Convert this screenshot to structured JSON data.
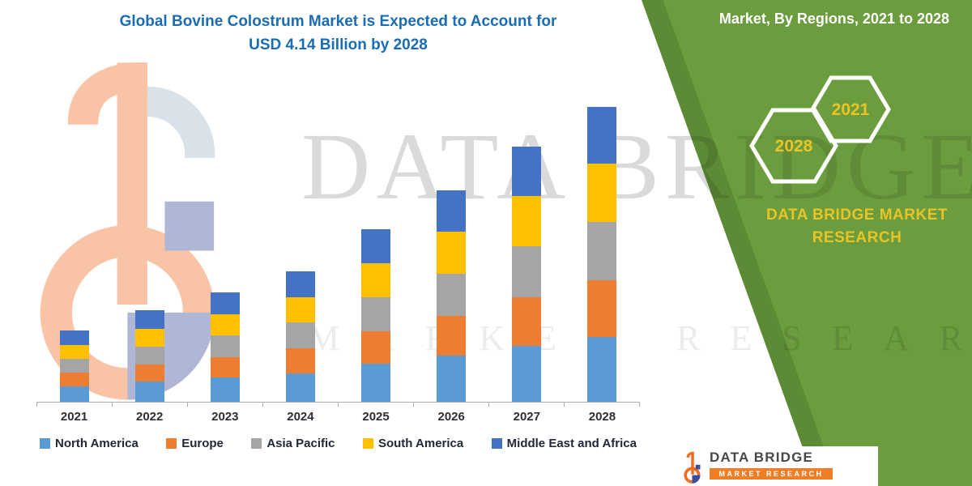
{
  "title": {
    "line1": "Global Bovine Colostrum Market is Expected to Account for",
    "line2": "USD 4.14 Billion by 2028"
  },
  "side_panel": {
    "heading": "Market, By Regions, 2021 to 2028",
    "hex_year_back": "2028",
    "hex_year_front": "2021",
    "brand": "DATA BRIDGE MARKET RESEARCH"
  },
  "watermark": {
    "big": "DATA BRIDGE",
    "small": "MARKET RESEARCH"
  },
  "footer": {
    "brand": "DATA BRIDGE",
    "sub": "MARKET RESEARCH"
  },
  "chart_data": {
    "type": "bar",
    "stacked": true,
    "title": "Global Bovine Colostrum Market is Expected to Account for USD 4.14 Billion by 2028",
    "unit": "USD Billion",
    "categories": [
      "2021",
      "2022",
      "2023",
      "2024",
      "2025",
      "2026",
      "2027",
      "2028"
    ],
    "series": [
      {
        "name": "North America",
        "color": "#5B9BD5",
        "values": [
          0.22,
          0.28,
          0.34,
          0.4,
          0.53,
          0.65,
          0.79,
          0.91
        ]
      },
      {
        "name": "Europe",
        "color": "#ED7D31",
        "values": [
          0.19,
          0.24,
          0.29,
          0.35,
          0.46,
          0.56,
          0.68,
          0.79
        ]
      },
      {
        "name": "Asia Pacific",
        "color": "#A5A5A5",
        "values": [
          0.19,
          0.25,
          0.3,
          0.36,
          0.48,
          0.59,
          0.71,
          0.82
        ]
      },
      {
        "name": "South America",
        "color": "#FFC000",
        "values": [
          0.2,
          0.25,
          0.3,
          0.36,
          0.48,
          0.59,
          0.71,
          0.82
        ]
      },
      {
        "name": "Middle East and Africa",
        "color": "#4472C4",
        "values": [
          0.2,
          0.26,
          0.31,
          0.36,
          0.47,
          0.58,
          0.69,
          0.8
        ]
      }
    ],
    "totals": [
      1.0,
      1.28,
      1.54,
      1.83,
      2.42,
      2.97,
      3.58,
      4.14
    ],
    "xlabel": "",
    "ylabel": "",
    "ylim": [
      0,
      4.5
    ],
    "grid": false,
    "legend_position": "bottom"
  }
}
